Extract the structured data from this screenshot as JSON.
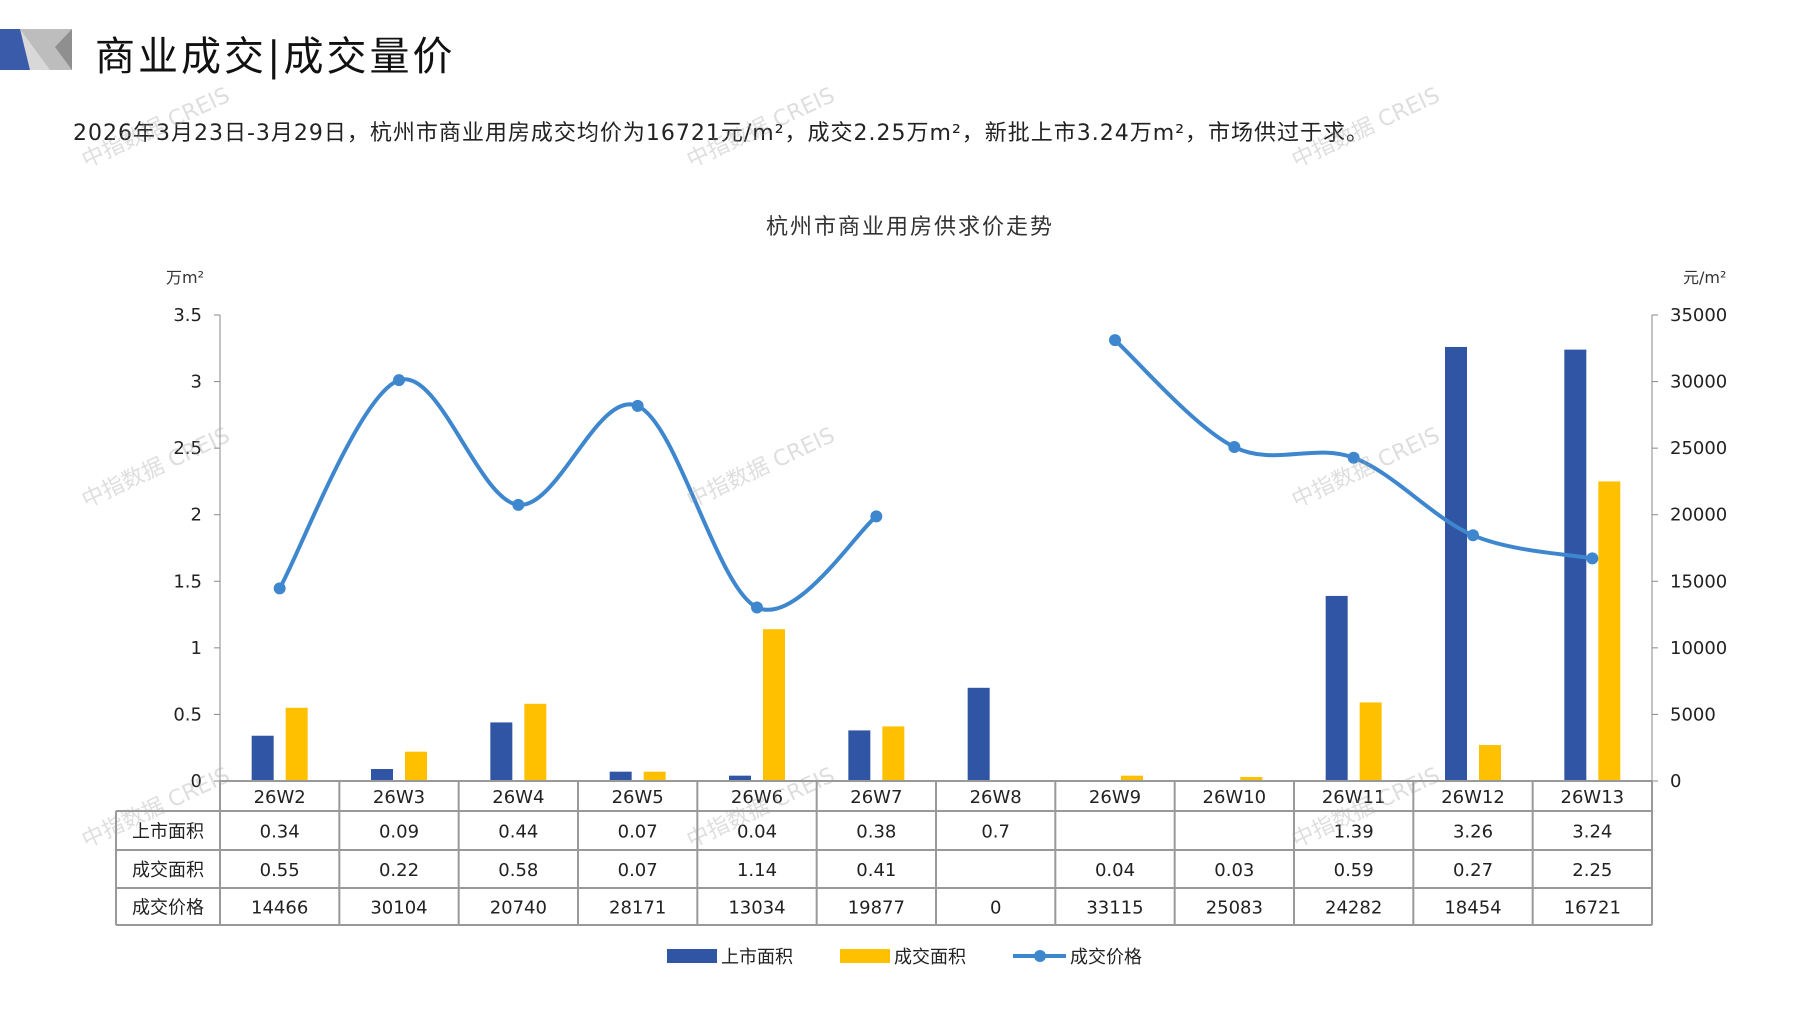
{
  "header": {
    "title": "商业成交|成交量价",
    "subtitle": "2026年3月23日-3月29日，杭州市商业用房成交均价为16721元/m²，成交2.25万m²，新批上市3.24万m²，市场供过于求。"
  },
  "watermark": "中指数据 CREIS",
  "colors": {
    "supply": "#2F55A4",
    "deal": "#FFC000",
    "price": "#3E87CF",
    "logo_blue": "#3A5BAA",
    "logo_gray": "#9A9A9A"
  },
  "chart_data": {
    "type": "bar+line",
    "title": "杭州市商业用房供求价走势",
    "ylabel_left": "万m²",
    "ylabel_right": "元/m²",
    "ylim_left": [
      0,
      3.5
    ],
    "yticks_left": [
      "0",
      "0.5",
      "1",
      "1.5",
      "2",
      "2.5",
      "3",
      "3.5"
    ],
    "ylim_right": [
      0,
      35000
    ],
    "yticks_right": [
      "0",
      "5000",
      "10000",
      "15000",
      "20000",
      "25000",
      "30000",
      "35000"
    ],
    "categories": [
      "26W2",
      "26W3",
      "26W4",
      "26W5",
      "26W6",
      "26W7",
      "26W8",
      "26W9",
      "26W10",
      "26W11",
      "26W12",
      "26W13"
    ],
    "series": [
      {
        "name": "上市面积",
        "type": "bar",
        "axis": "left",
        "values": [
          0.34,
          0.09,
          0.44,
          0.07,
          0.04,
          0.38,
          0.7,
          null,
          null,
          1.39,
          3.26,
          3.24
        ]
      },
      {
        "name": "成交面积",
        "type": "bar",
        "axis": "left",
        "values": [
          0.55,
          0.22,
          0.58,
          0.07,
          1.14,
          0.41,
          null,
          0.04,
          0.03,
          0.59,
          0.27,
          2.25
        ]
      },
      {
        "name": "成交价格",
        "type": "line",
        "axis": "right",
        "values": [
          14466,
          30104,
          20740,
          28171,
          13034,
          19877,
          0,
          33115,
          25083,
          24282,
          18454,
          16721
        ]
      }
    ],
    "table_labels": [
      "上市面积",
      "成交面积",
      "成交价格"
    ],
    "table_values": [
      [
        "0.34",
        "0.09",
        "0.44",
        "0.07",
        "0.04",
        "0.38",
        "0.7",
        "",
        "",
        "1.39",
        "3.26",
        "3.24"
      ],
      [
        "0.55",
        "0.22",
        "0.58",
        "0.07",
        "1.14",
        "0.41",
        "",
        "0.04",
        "0.03",
        "0.59",
        "0.27",
        "2.25"
      ],
      [
        "14466",
        "30104",
        "20740",
        "28171",
        "13034",
        "19877",
        "0",
        "33115",
        "25083",
        "24282",
        "18454",
        "16721"
      ]
    ],
    "legend_position": "bottom"
  }
}
